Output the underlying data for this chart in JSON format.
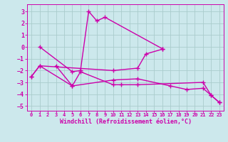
{
  "background_color": "#cce8ec",
  "grid_color": "#aacccc",
  "line_color": "#cc00aa",
  "marker": "+",
  "markersize": 4,
  "linewidth": 1.0,
  "xlabel": "Windchill (Refroidissement éolien,°C)",
  "xlabel_fontsize": 6,
  "xtick_fontsize": 5,
  "ytick_fontsize": 6,
  "xlim": [
    -0.5,
    23.5
  ],
  "ylim": [
    -5.4,
    3.6
  ],
  "yticks": [
    -5,
    -4,
    -3,
    -2,
    -1,
    0,
    1,
    2,
    3
  ],
  "xticks": [
    0,
    1,
    2,
    3,
    4,
    5,
    6,
    7,
    8,
    9,
    10,
    11,
    12,
    13,
    14,
    15,
    16,
    17,
    18,
    19,
    20,
    21,
    22,
    23
  ],
  "lines": [
    {
      "x": [
        1,
        5,
        6,
        7,
        8,
        9,
        16
      ],
      "y": [
        0.0,
        -2.1,
        -2.0,
        3.0,
        2.2,
        2.5,
        -0.15
      ]
    },
    {
      "x": [
        3,
        5,
        6,
        10,
        11,
        13,
        21,
        22,
        23
      ],
      "y": [
        -1.6,
        -3.3,
        -2.1,
        -3.2,
        -3.2,
        -3.2,
        -3.0,
        -4.1,
        -4.7
      ]
    },
    {
      "x": [
        0,
        1,
        10,
        13,
        14,
        16
      ],
      "y": [
        -2.5,
        -1.6,
        -2.0,
        -1.8,
        -0.6,
        -0.2
      ]
    },
    {
      "x": [
        0,
        1,
        5,
        10,
        13,
        17,
        19,
        21,
        22,
        23
      ],
      "y": [
        -2.5,
        -1.6,
        -3.3,
        -2.8,
        -2.7,
        -3.3,
        -3.6,
        -3.5,
        -4.1,
        -4.7
      ]
    }
  ]
}
